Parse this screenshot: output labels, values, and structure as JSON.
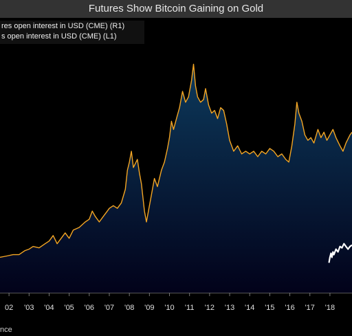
{
  "chart_data": {
    "type": "area",
    "title": "Futures Show Bitcoin Gaining on Gold",
    "legend_placement": "top-left",
    "x_axis": {
      "range": [
        2001.55,
        2019.1
      ],
      "ticks": [
        {
          "x": 2002.0,
          "label": "02"
        },
        {
          "x": 2003.0,
          "label": "'03"
        },
        {
          "x": 2004.0,
          "label": "'04"
        },
        {
          "x": 2005.0,
          "label": "'05"
        },
        {
          "x": 2006.0,
          "label": "'06"
        },
        {
          "x": 2007.0,
          "label": "'07"
        },
        {
          "x": 2008.0,
          "label": "'08"
        },
        {
          "x": 2009.0,
          "label": "'09"
        },
        {
          "x": 2010.0,
          "label": "'10"
        },
        {
          "x": 2011.0,
          "label": "'11"
        },
        {
          "x": 2012.0,
          "label": "'12"
        },
        {
          "x": 2013.0,
          "label": "'13"
        },
        {
          "x": 2014.0,
          "label": "'14"
        },
        {
          "x": 2015.0,
          "label": "'15"
        },
        {
          "x": 2016.0,
          "label": "'16"
        },
        {
          "x": 2017.0,
          "label": "'17"
        },
        {
          "x": 2018.0,
          "label": "'18"
        }
      ]
    },
    "y_axis": {
      "range": [
        0,
        100
      ]
    },
    "grid": false,
    "series": [
      {
        "name": "res open interest in USD (CME) (R1)",
        "color": "#f5a623",
        "fill_top": "#0d3a5c",
        "fill_bottom": "#02021a",
        "points": [
          [
            2001.55,
            13
          ],
          [
            2001.9,
            13.5
          ],
          [
            2002.2,
            14
          ],
          [
            2002.5,
            14
          ],
          [
            2002.8,
            15.5
          ],
          [
            2003.0,
            16
          ],
          [
            2003.2,
            17
          ],
          [
            2003.5,
            16.5
          ],
          [
            2003.8,
            18
          ],
          [
            2004.0,
            19
          ],
          [
            2004.2,
            21
          ],
          [
            2004.4,
            18
          ],
          [
            2004.6,
            20
          ],
          [
            2004.8,
            22
          ],
          [
            2005.0,
            20
          ],
          [
            2005.2,
            23
          ],
          [
            2005.5,
            24
          ],
          [
            2005.8,
            26
          ],
          [
            2006.0,
            27
          ],
          [
            2006.15,
            30
          ],
          [
            2006.3,
            28
          ],
          [
            2006.5,
            26
          ],
          [
            2006.7,
            28
          ],
          [
            2006.9,
            30
          ],
          [
            2007.0,
            31
          ],
          [
            2007.2,
            32
          ],
          [
            2007.4,
            31
          ],
          [
            2007.6,
            33
          ],
          [
            2007.8,
            38
          ],
          [
            2007.9,
            45
          ],
          [
            2008.0,
            48
          ],
          [
            2008.1,
            52
          ],
          [
            2008.2,
            46
          ],
          [
            2008.4,
            49
          ],
          [
            2008.5,
            44
          ],
          [
            2008.6,
            40
          ],
          [
            2008.75,
            30
          ],
          [
            2008.85,
            26
          ],
          [
            2008.95,
            30
          ],
          [
            2009.1,
            36
          ],
          [
            2009.25,
            42
          ],
          [
            2009.4,
            39
          ],
          [
            2009.6,
            45
          ],
          [
            2009.75,
            48
          ],
          [
            2009.9,
            53
          ],
          [
            2010.0,
            57
          ],
          [
            2010.1,
            63
          ],
          [
            2010.2,
            60
          ],
          [
            2010.35,
            64
          ],
          [
            2010.5,
            68
          ],
          [
            2010.65,
            74
          ],
          [
            2010.8,
            70
          ],
          [
            2010.95,
            72
          ],
          [
            2011.1,
            78
          ],
          [
            2011.2,
            84
          ],
          [
            2011.3,
            76
          ],
          [
            2011.4,
            72
          ],
          [
            2011.55,
            70
          ],
          [
            2011.7,
            71
          ],
          [
            2011.8,
            75
          ],
          [
            2011.95,
            69
          ],
          [
            2012.1,
            66
          ],
          [
            2012.25,
            67
          ],
          [
            2012.4,
            64
          ],
          [
            2012.55,
            68
          ],
          [
            2012.7,
            67
          ],
          [
            2012.85,
            62
          ],
          [
            2013.0,
            56
          ],
          [
            2013.2,
            52
          ],
          [
            2013.4,
            54
          ],
          [
            2013.6,
            51
          ],
          [
            2013.8,
            52
          ],
          [
            2014.0,
            51
          ],
          [
            2014.2,
            52
          ],
          [
            2014.4,
            50
          ],
          [
            2014.6,
            52
          ],
          [
            2014.8,
            51
          ],
          [
            2015.0,
            53
          ],
          [
            2015.2,
            52
          ],
          [
            2015.4,
            50
          ],
          [
            2015.6,
            51
          ],
          [
            2015.8,
            49
          ],
          [
            2015.95,
            48
          ],
          [
            2016.1,
            54
          ],
          [
            2016.25,
            62
          ],
          [
            2016.35,
            70
          ],
          [
            2016.45,
            66
          ],
          [
            2016.6,
            63
          ],
          [
            2016.75,
            58
          ],
          [
            2016.9,
            56
          ],
          [
            2017.05,
            57
          ],
          [
            2017.2,
            55
          ],
          [
            2017.4,
            60
          ],
          [
            2017.55,
            57
          ],
          [
            2017.7,
            59
          ],
          [
            2017.85,
            56
          ],
          [
            2018.0,
            58
          ],
          [
            2018.15,
            60
          ],
          [
            2018.3,
            57
          ],
          [
            2018.5,
            54
          ],
          [
            2018.65,
            52
          ],
          [
            2018.8,
            55
          ],
          [
            2019.0,
            58
          ],
          [
            2019.1,
            59
          ]
        ]
      },
      {
        "name": "s open interest in USD (CME) (L1)",
        "color": "#ffffff",
        "points": [
          [
            2017.95,
            11
          ],
          [
            2018.0,
            13
          ],
          [
            2018.05,
            14.5
          ],
          [
            2018.1,
            13
          ],
          [
            2018.15,
            15
          ],
          [
            2018.2,
            14
          ],
          [
            2018.3,
            16
          ],
          [
            2018.4,
            15
          ],
          [
            2018.5,
            17
          ],
          [
            2018.6,
            16.5
          ],
          [
            2018.7,
            18
          ],
          [
            2018.8,
            17
          ],
          [
            2018.9,
            16
          ],
          [
            2019.0,
            17
          ],
          [
            2019.1,
            17.5
          ]
        ]
      }
    ],
    "source": "nce"
  }
}
